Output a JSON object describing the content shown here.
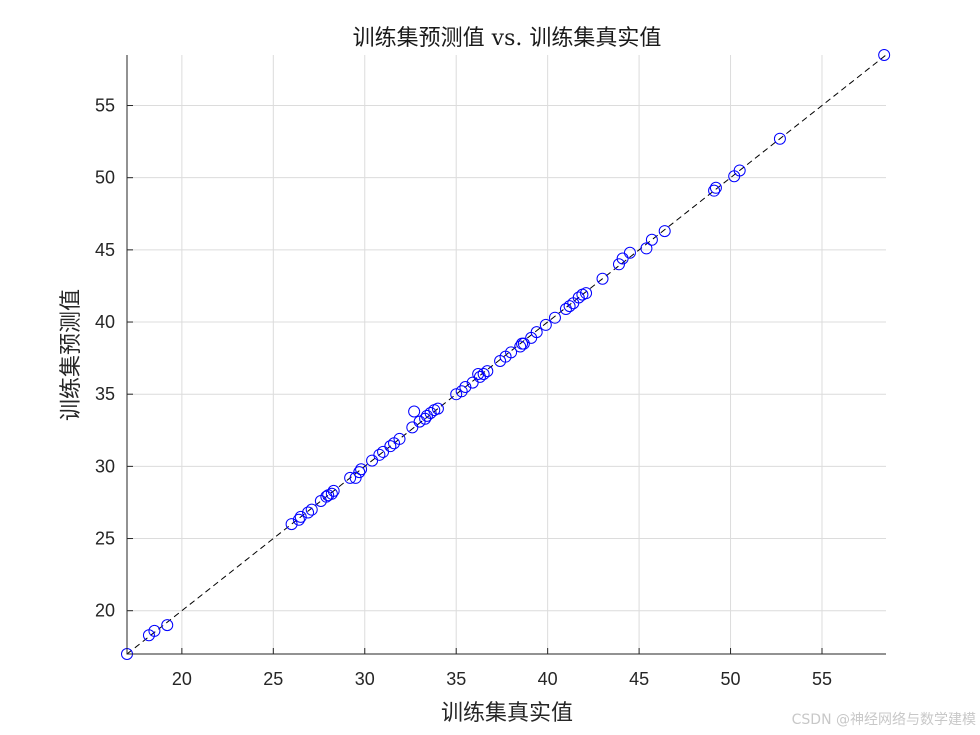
{
  "chart_data": {
    "type": "scatter",
    "title": "训练集预测值 vs. 训练集真实值",
    "xlabel": "训练集真实值",
    "ylabel": "训练集预测值",
    "xlim": [
      17,
      58.5
    ],
    "ylim": [
      17,
      58.5
    ],
    "xticks": [
      20,
      25,
      30,
      35,
      40,
      45,
      50,
      55
    ],
    "yticks": [
      20,
      25,
      30,
      35,
      40,
      45,
      50,
      55
    ],
    "grid": true,
    "colors": {
      "points": "#0000ff",
      "reference_line": "#000000"
    },
    "reference_line": {
      "style": "dashed",
      "from": [
        17,
        17
      ],
      "to": [
        58.5,
        58.5
      ]
    },
    "series": [
      {
        "x": [
          17.0,
          18.2,
          18.5,
          19.2,
          26.0,
          26.4,
          26.5,
          26.9,
          27.1,
          27.6,
          27.9,
          28.0,
          28.2,
          28.3,
          29.2,
          29.5,
          29.7,
          29.8,
          30.4,
          30.8,
          31.0,
          31.4,
          31.6,
          31.9,
          32.6,
          32.7,
          33.0,
          33.3,
          33.4,
          33.6,
          33.8,
          34.0,
          35.0,
          35.3,
          35.5,
          35.9,
          36.2,
          36.3,
          36.5,
          36.7,
          37.4,
          37.7,
          38.0,
          38.5,
          38.6,
          38.7,
          39.1,
          39.4,
          39.9,
          40.4,
          41.0,
          41.2,
          41.4,
          41.7,
          41.9,
          42.1,
          43.0,
          43.9,
          44.1,
          44.5,
          45.4,
          45.7,
          46.4,
          49.1,
          49.2,
          50.2,
          50.5,
          52.7,
          58.4
        ],
        "y": [
          17.0,
          18.3,
          18.6,
          19.0,
          26.0,
          26.3,
          26.5,
          26.8,
          27.0,
          27.6,
          27.9,
          28.0,
          28.1,
          28.3,
          29.2,
          29.2,
          29.6,
          29.8,
          30.4,
          30.8,
          31.0,
          31.4,
          31.6,
          31.9,
          32.7,
          33.8,
          33.1,
          33.3,
          33.5,
          33.7,
          33.9,
          34.0,
          35.0,
          35.2,
          35.5,
          35.8,
          36.4,
          36.2,
          36.4,
          36.6,
          37.3,
          37.6,
          37.9,
          38.3,
          38.5,
          38.5,
          38.9,
          39.3,
          39.8,
          40.3,
          40.9,
          41.1,
          41.3,
          41.7,
          41.9,
          42.0,
          43.0,
          44.0,
          44.4,
          44.8,
          45.1,
          45.7,
          46.3,
          49.1,
          49.3,
          50.1,
          50.5,
          52.7,
          58.5
        ]
      }
    ]
  },
  "watermark": "CSDN @神经网络与数学建模"
}
